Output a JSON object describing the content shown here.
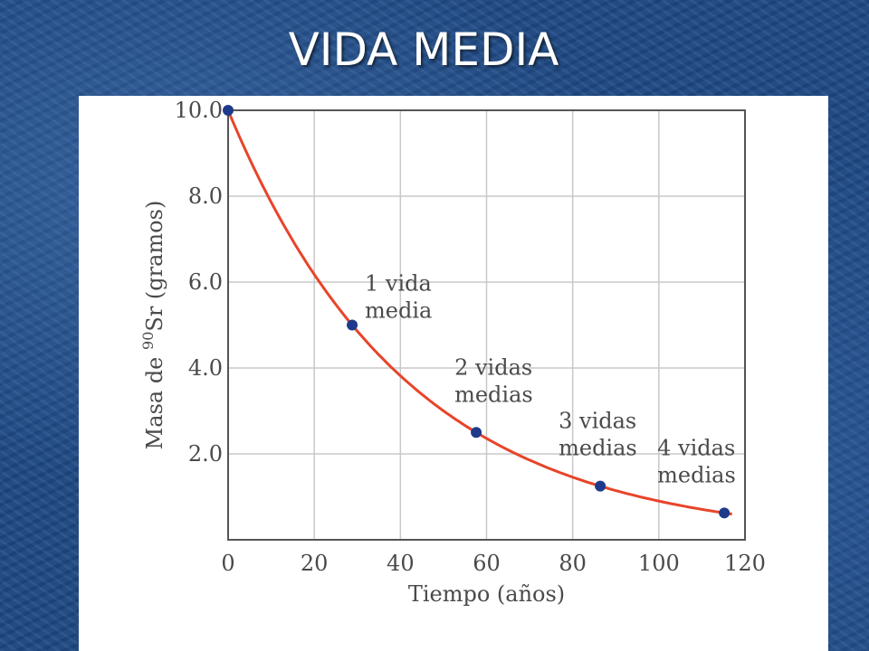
{
  "slide": {
    "title": "VIDA MEDIA"
  },
  "colors": {
    "background": "#1f4a86",
    "curve": "#e8442a",
    "points": "#1f3a8a",
    "grid": "#c8c8c8"
  },
  "chart_data": {
    "type": "line",
    "title": "",
    "xlabel": "Tiempo (años)",
    "ylabel_prefix": "Masa de ",
    "ylabel_superscript": "90",
    "ylabel_suffix": "Sr (gramos)",
    "xlim": [
      0,
      120
    ],
    "ylim": [
      0,
      10
    ],
    "grid": true,
    "x_ticks": [
      0,
      20,
      40,
      60,
      80,
      100,
      120
    ],
    "y_ticks": [
      "2.0",
      "4.0",
      "6.0",
      "8.0",
      "10.0"
    ],
    "half_life": 28.8,
    "initial_mass": 10.0,
    "curve_x_end": 117,
    "series": [
      {
        "x": [
          0,
          28.8,
          57.6,
          86.4,
          115.2
        ],
        "y": [
          10.0,
          5.0,
          2.5,
          1.25,
          0.625
        ]
      }
    ],
    "annotations": [
      {
        "lines": [
          "1 vida",
          "media"
        ]
      },
      {
        "lines": [
          "2 vidas",
          "medias"
        ]
      },
      {
        "lines": [
          "3 vidas",
          "medias"
        ]
      },
      {
        "lines": [
          "4 vidas",
          "medias"
        ]
      }
    ]
  }
}
